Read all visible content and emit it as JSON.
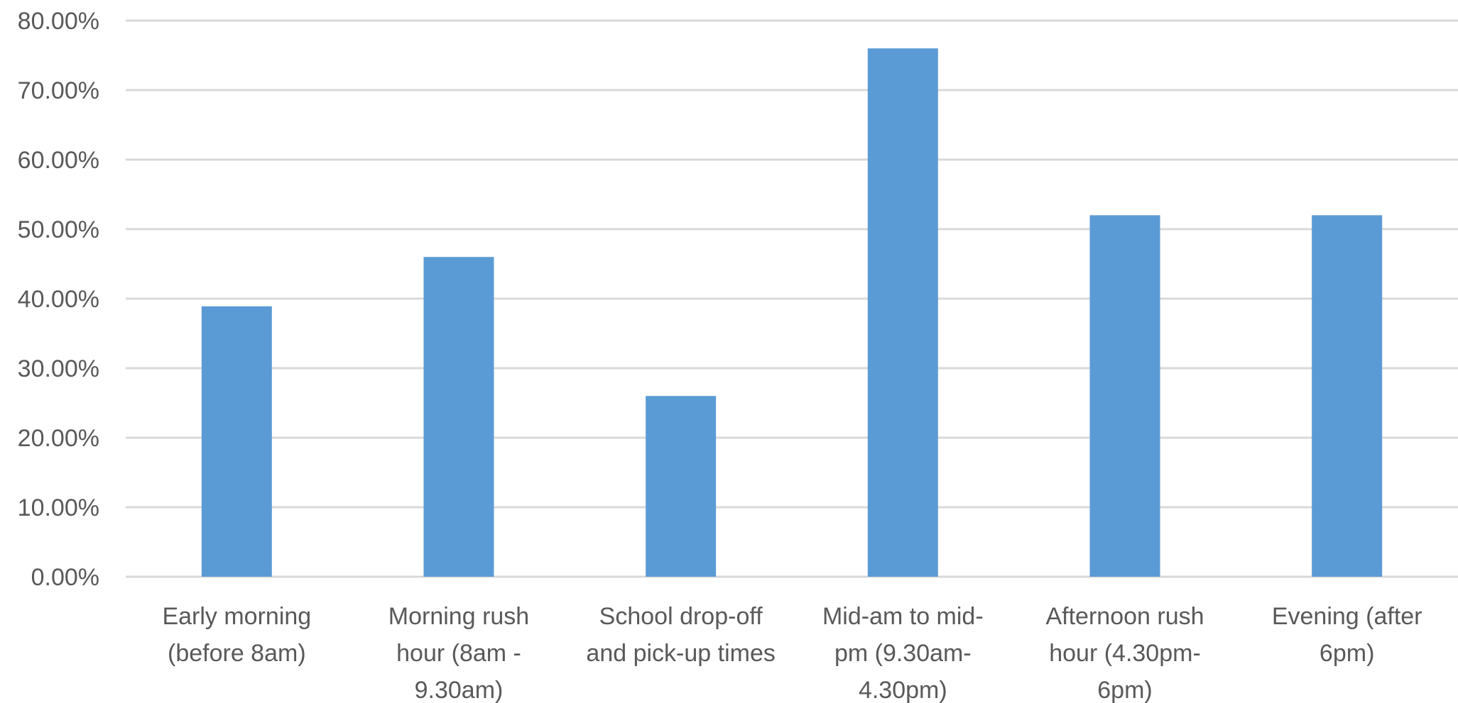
{
  "chart_data": {
    "type": "bar",
    "categories": [
      [
        "Early morning",
        "(before 8am)"
      ],
      [
        "Morning rush",
        "hour (8am -",
        "9.30am)"
      ],
      [
        "School drop-off",
        "and pick-up times"
      ],
      [
        "Mid-am to mid-",
        "pm (9.30am-",
        "4.30pm)"
      ],
      [
        "Afternoon rush",
        "hour (4.30pm-",
        "6pm)"
      ],
      [
        "Evening (after",
        "6pm)"
      ]
    ],
    "values": [
      38.9,
      46.0,
      26.0,
      76.0,
      52.0,
      52.0
    ],
    "ylim": [
      0,
      80
    ],
    "yticks": [
      "0.00%",
      "10.00%",
      "20.00%",
      "30.00%",
      "40.00%",
      "50.00%",
      "60.00%",
      "70.00%",
      "80.00%"
    ],
    "grid": true,
    "legend": "none",
    "title": "",
    "xlabel": "",
    "ylabel": "",
    "colors": {
      "bar": "#5b9bd5",
      "grid": "#d9d9d9",
      "text": "#595959"
    }
  }
}
